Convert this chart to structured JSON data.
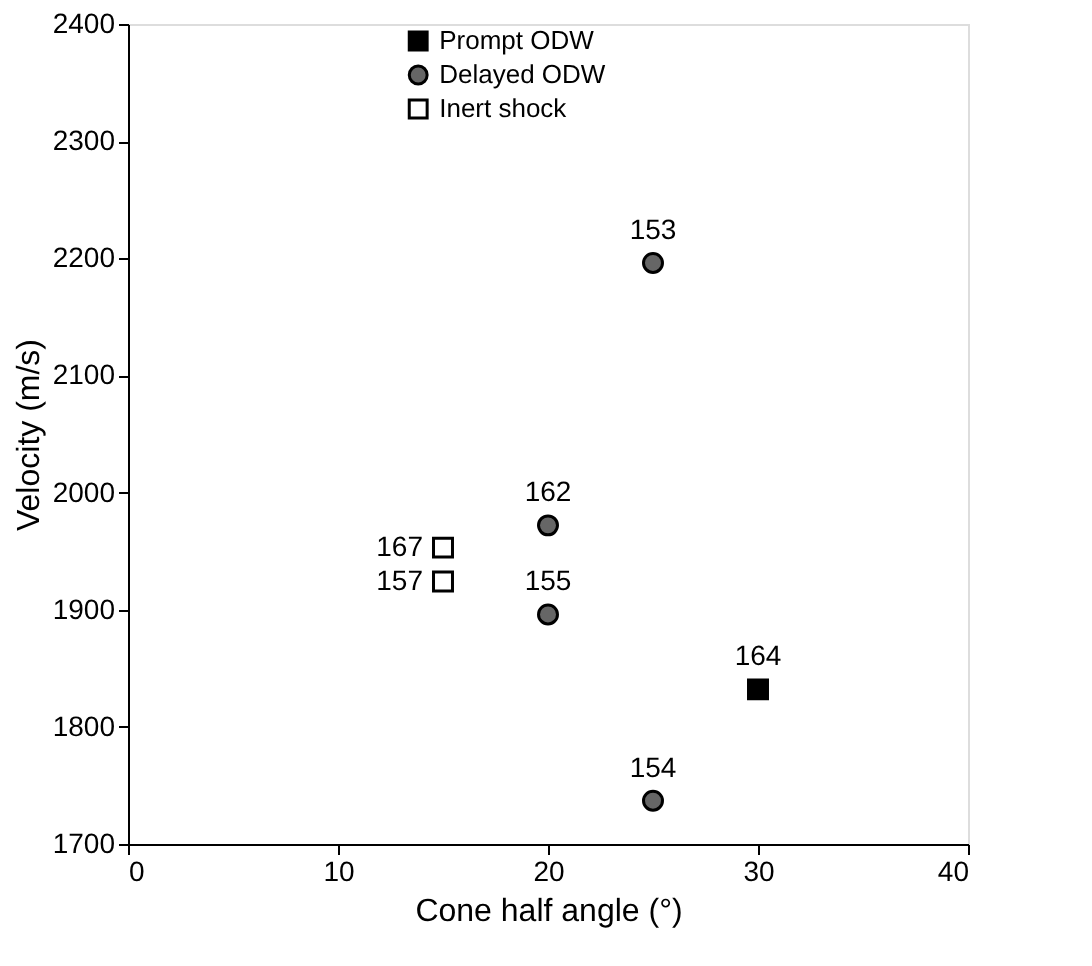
{
  "chart_data": {
    "type": "scatter",
    "xlabel": "Cone half angle (°)",
    "ylabel": "Velocity (m/s)",
    "xlim": [
      0,
      40
    ],
    "xticks": [
      0,
      10,
      20,
      30,
      40
    ],
    "ylim": [
      1700,
      2400
    ],
    "yticks": [
      1700,
      1800,
      1900,
      2000,
      2100,
      2200,
      2300,
      2400
    ],
    "grid": false,
    "legend": "top",
    "series": [
      {
        "name": "Prompt ODW",
        "color": "#000000",
        "marker": "square",
        "x": [
          30
        ],
        "values": [
          1832
        ]
      },
      {
        "name": "Delayed ODW",
        "color": "#666666",
        "marker": "circle",
        "x": [
          25,
          20,
          20,
          25
        ],
        "values": [
          2196,
          1972,
          1896,
          1737
        ]
      },
      {
        "name": "Inert shock",
        "color": "#ffffff",
        "marker": "square",
        "x": [
          15,
          15
        ],
        "values": [
          1953,
          1924
        ]
      }
    ],
    "annotations": [
      {
        "text": "153",
        "x": 25,
        "y": 2196
      },
      {
        "text": "162",
        "x": 20,
        "y": 1972
      },
      {
        "text": "155",
        "x": 20,
        "y": 1896
      },
      {
        "text": "154",
        "x": 25,
        "y": 1737
      },
      {
        "text": "164",
        "x": 30,
        "y": 1832
      },
      {
        "text": "167",
        "x": 15,
        "y": 1953
      },
      {
        "text": "157",
        "x": 15,
        "y": 1924
      }
    ]
  }
}
